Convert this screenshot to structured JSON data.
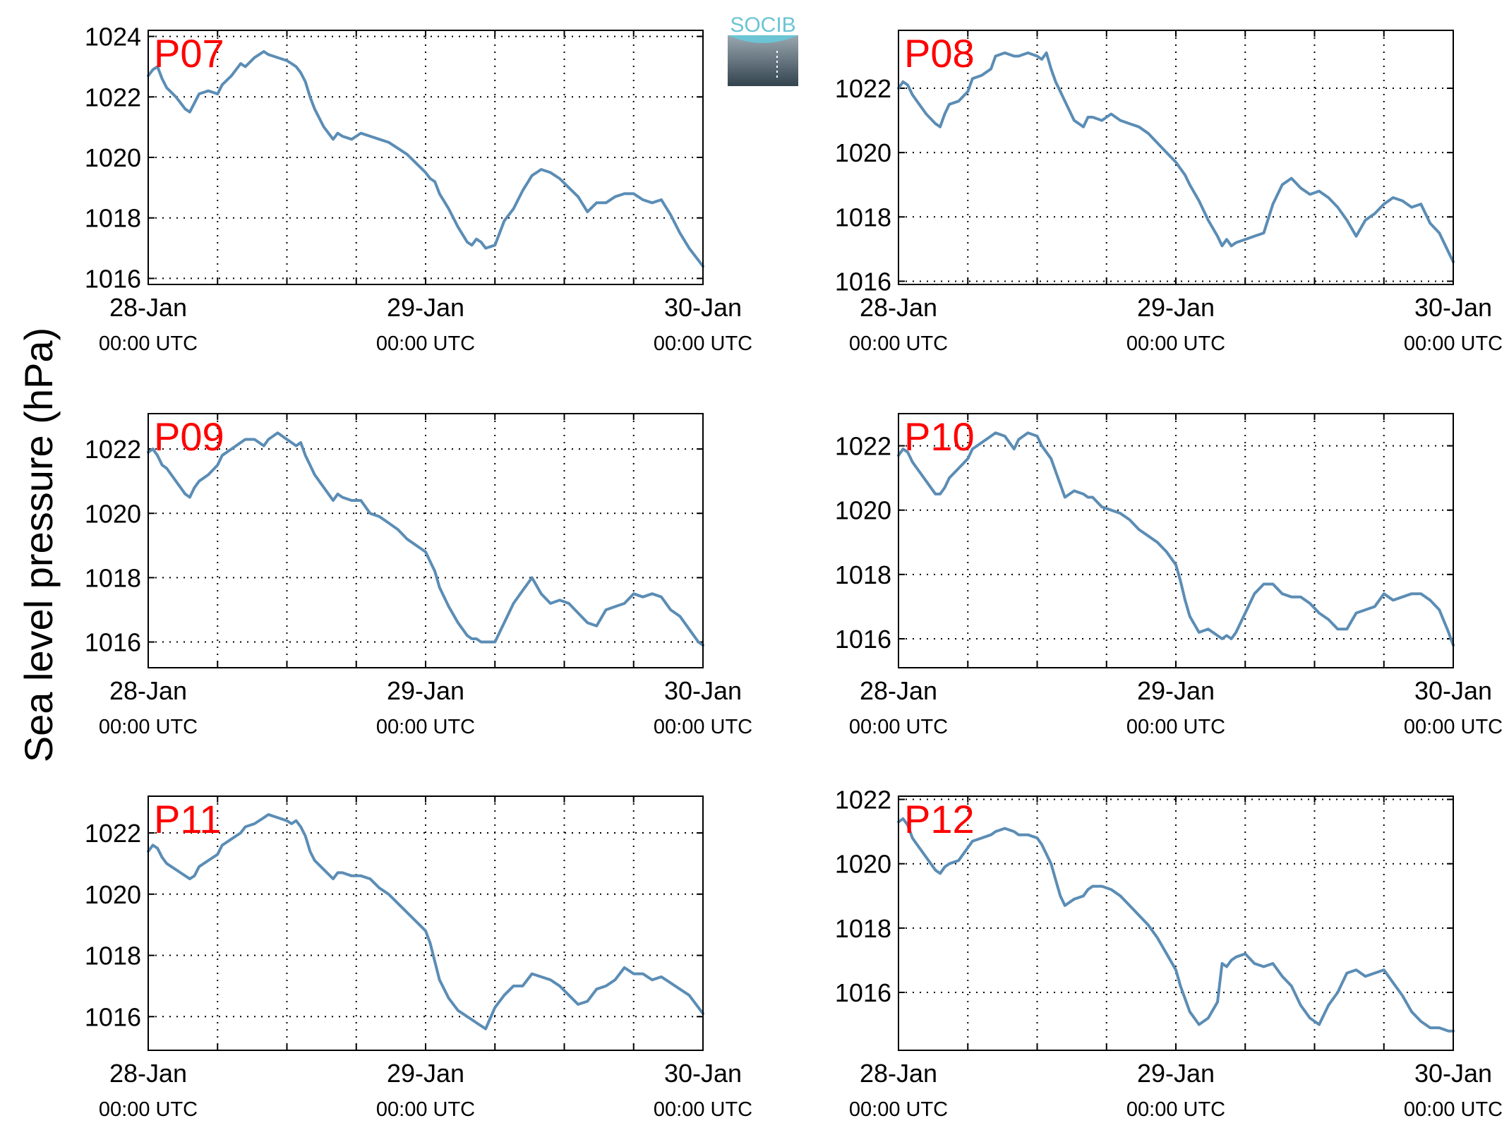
{
  "figure": {
    "ylabel": "Sea level pressure (hPa)",
    "logo_text": "SOCIB",
    "line_color": "#5b8db5",
    "label_color": "#ff0000"
  },
  "chart_data": [
    {
      "type": "line",
      "panel_label": "P07",
      "x_ticks": [
        {
          "day": "28-Jan",
          "time": "00:00 UTC"
        },
        {
          "day": "29-Jan",
          "time": "00:00 UTC"
        },
        {
          "day": "30-Jan",
          "time": "00:00 UTC"
        }
      ],
      "xlim_hours": [
        0,
        48
      ],
      "ylim": [
        1015.8,
        1024.2
      ],
      "y_ticks": [
        1016,
        1018,
        1020,
        1022,
        1024
      ],
      "grid": true,
      "x_hours": [
        0,
        0.4,
        0.8,
        1.2,
        1.6,
        2.4,
        3.2,
        3.6,
        4.0,
        4.4,
        5.2,
        6.0,
        6.4,
        7.2,
        8.0,
        8.4,
        9.2,
        10.0,
        10.4,
        11.2,
        12.0,
        12.4,
        12.8,
        13.2,
        13.6,
        14.0,
        14.4,
        15.2,
        16.0,
        16.4,
        16.8,
        17.6,
        18.4,
        19.2,
        20.0,
        20.8,
        21.6,
        22.4,
        23.2,
        24.0,
        24.4,
        24.8,
        25.2,
        26.0,
        26.8,
        27.6,
        28.0,
        28.4,
        28.8,
        29.2,
        30.0,
        30.8,
        31.6,
        32.4,
        33.2,
        34.0,
        34.8,
        35.6,
        36.4,
        37.2,
        38.0,
        38.8,
        39.6,
        40.4,
        41.2,
        42.0,
        42.8,
        43.6,
        44.4,
        45.2,
        46.0,
        46.8,
        47.6,
        48.0
      ],
      "y_values": [
        1022.7,
        1022.9,
        1023.0,
        1022.6,
        1022.3,
        1022.0,
        1021.6,
        1021.5,
        1021.8,
        1022.1,
        1022.2,
        1022.1,
        1022.4,
        1022.7,
        1023.1,
        1023.0,
        1023.3,
        1023.5,
        1023.4,
        1023.3,
        1023.2,
        1023.1,
        1023.0,
        1022.8,
        1022.5,
        1022.0,
        1021.6,
        1021.0,
        1020.6,
        1020.8,
        1020.7,
        1020.6,
        1020.8,
        1020.7,
        1020.6,
        1020.5,
        1020.3,
        1020.1,
        1019.8,
        1019.5,
        1019.3,
        1019.2,
        1018.8,
        1018.3,
        1017.7,
        1017.2,
        1017.1,
        1017.3,
        1017.2,
        1017.0,
        1017.1,
        1017.9,
        1018.3,
        1018.9,
        1019.4,
        1019.6,
        1019.5,
        1019.3,
        1019.0,
        1018.7,
        1018.2,
        1018.5,
        1018.5,
        1018.7,
        1018.8,
        1018.8,
        1018.6,
        1018.5,
        1018.6,
        1018.1,
        1017.5,
        1017.0,
        1016.6,
        1016.4
      ]
    },
    {
      "type": "line",
      "panel_label": "P08",
      "x_ticks": [
        {
          "day": "28-Jan",
          "time": "00:00 UTC"
        },
        {
          "day": "29-Jan",
          "time": "00:00 UTC"
        },
        {
          "day": "30-Jan",
          "time": "00:00 UTC"
        }
      ],
      "xlim_hours": [
        0,
        48
      ],
      "ylim": [
        1015.9,
        1023.8
      ],
      "y_ticks": [
        1016,
        1018,
        1020,
        1022
      ],
      "grid": true,
      "x_hours": [
        0,
        0.4,
        0.8,
        1.2,
        1.6,
        2.4,
        3.2,
        3.6,
        4.0,
        4.4,
        5.2,
        6.0,
        6.4,
        7.2,
        8.0,
        8.4,
        9.2,
        10.0,
        10.4,
        11.2,
        12.0,
        12.4,
        12.8,
        13.2,
        13.6,
        14.0,
        14.4,
        15.2,
        16.0,
        16.4,
        16.8,
        17.6,
        18.4,
        19.2,
        20.0,
        20.8,
        21.6,
        22.4,
        23.2,
        24.0,
        24.4,
        24.8,
        25.2,
        26.0,
        26.8,
        27.6,
        28.0,
        28.4,
        28.8,
        29.2,
        30.0,
        30.8,
        31.6,
        32.4,
        33.2,
        34.0,
        34.8,
        35.6,
        36.4,
        37.2,
        38.0,
        38.8,
        39.6,
        40.4,
        41.2,
        42.0,
        42.8,
        43.6,
        44.4,
        45.2,
        46.0,
        46.8,
        47.6,
        48.0
      ],
      "y_values": [
        1022.0,
        1022.2,
        1022.1,
        1021.8,
        1021.6,
        1021.2,
        1020.9,
        1020.8,
        1021.2,
        1021.5,
        1021.6,
        1021.9,
        1022.3,
        1022.4,
        1022.6,
        1023.0,
        1023.1,
        1023.0,
        1023.0,
        1023.1,
        1023.0,
        1022.9,
        1023.1,
        1022.6,
        1022.2,
        1021.9,
        1021.6,
        1021.0,
        1020.8,
        1021.1,
        1021.1,
        1021.0,
        1021.2,
        1021.0,
        1020.9,
        1020.8,
        1020.6,
        1020.3,
        1020.0,
        1019.7,
        1019.5,
        1019.3,
        1019.0,
        1018.5,
        1017.9,
        1017.4,
        1017.1,
        1017.3,
        1017.1,
        1017.2,
        1017.3,
        1017.4,
        1017.5,
        1018.4,
        1019.0,
        1019.2,
        1018.9,
        1018.7,
        1018.8,
        1018.6,
        1018.3,
        1017.9,
        1017.4,
        1017.9,
        1018.1,
        1018.4,
        1018.6,
        1018.5,
        1018.3,
        1018.4,
        1017.8,
        1017.5,
        1016.9,
        1016.6
      ]
    },
    {
      "type": "line",
      "panel_label": "P09",
      "x_ticks": [
        {
          "day": "28-Jan",
          "time": "00:00 UTC"
        },
        {
          "day": "29-Jan",
          "time": "00:00 UTC"
        },
        {
          "day": "30-Jan",
          "time": "00:00 UTC"
        }
      ],
      "xlim_hours": [
        0,
        48
      ],
      "ylim": [
        1015.2,
        1023.1
      ],
      "y_ticks": [
        1016,
        1018,
        1020,
        1022
      ],
      "grid": true,
      "x_hours": [
        0,
        0.4,
        0.8,
        1.2,
        1.6,
        2.4,
        3.2,
        3.6,
        4.0,
        4.4,
        5.2,
        6.0,
        6.4,
        7.2,
        8.0,
        8.4,
        9.2,
        10.0,
        10.4,
        11.2,
        12.0,
        12.4,
        12.8,
        13.2,
        13.6,
        14.0,
        14.4,
        15.2,
        16.0,
        16.4,
        16.8,
        17.6,
        18.4,
        19.2,
        20.0,
        20.8,
        21.6,
        22.4,
        23.2,
        24.0,
        24.4,
        24.8,
        25.2,
        26.0,
        26.8,
        27.6,
        28.0,
        28.4,
        28.8,
        29.2,
        30.0,
        30.8,
        31.6,
        32.4,
        33.2,
        34.0,
        34.8,
        35.6,
        36.4,
        37.2,
        38.0,
        38.8,
        39.6,
        40.4,
        41.2,
        42.0,
        42.8,
        43.6,
        44.4,
        45.2,
        46.0,
        46.8,
        47.6,
        48.0
      ],
      "y_values": [
        1021.9,
        1022.0,
        1021.8,
        1021.5,
        1021.4,
        1021.0,
        1020.6,
        1020.5,
        1020.8,
        1021.0,
        1021.2,
        1021.5,
        1021.8,
        1022.0,
        1022.2,
        1022.3,
        1022.3,
        1022.1,
        1022.3,
        1022.5,
        1022.3,
        1022.2,
        1022.1,
        1022.2,
        1021.8,
        1021.5,
        1021.2,
        1020.8,
        1020.4,
        1020.6,
        1020.5,
        1020.4,
        1020.4,
        1020.0,
        1019.9,
        1019.7,
        1019.5,
        1019.2,
        1019.0,
        1018.8,
        1018.5,
        1018.2,
        1017.7,
        1017.1,
        1016.6,
        1016.2,
        1016.1,
        1016.1,
        1016.0,
        1016.0,
        1016.0,
        1016.6,
        1017.2,
        1017.6,
        1018.0,
        1017.5,
        1017.2,
        1017.3,
        1017.2,
        1016.9,
        1016.6,
        1016.5,
        1017.0,
        1017.1,
        1017.2,
        1017.5,
        1017.4,
        1017.5,
        1017.4,
        1017.0,
        1016.8,
        1016.4,
        1016.0,
        1015.9
      ]
    },
    {
      "type": "line",
      "panel_label": "P10",
      "x_ticks": [
        {
          "day": "28-Jan",
          "time": "00:00 UTC"
        },
        {
          "day": "29-Jan",
          "time": "00:00 UTC"
        },
        {
          "day": "30-Jan",
          "time": "00:00 UTC"
        }
      ],
      "xlim_hours": [
        0,
        48
      ],
      "ylim": [
        1015.1,
        1023.0
      ],
      "y_ticks": [
        1016,
        1018,
        1020,
        1022
      ],
      "grid": true,
      "x_hours": [
        0,
        0.4,
        0.8,
        1.2,
        1.6,
        2.4,
        3.2,
        3.6,
        4.0,
        4.4,
        5.2,
        6.0,
        6.4,
        7.2,
        8.0,
        8.4,
        9.2,
        10.0,
        10.4,
        11.2,
        12.0,
        12.4,
        12.8,
        13.2,
        13.6,
        14.0,
        14.4,
        15.2,
        16.0,
        16.4,
        16.8,
        17.6,
        18.4,
        19.2,
        20.0,
        20.8,
        21.6,
        22.4,
        23.2,
        24.0,
        24.4,
        24.8,
        25.2,
        26.0,
        26.8,
        27.6,
        28.0,
        28.4,
        28.8,
        29.2,
        30.0,
        30.8,
        31.6,
        32.4,
        33.2,
        34.0,
        34.8,
        35.6,
        36.4,
        37.2,
        38.0,
        38.8,
        39.6,
        40.4,
        41.2,
        42.0,
        42.8,
        43.6,
        44.4,
        45.2,
        46.0,
        46.8,
        47.6,
        48.0
      ],
      "y_values": [
        1021.7,
        1021.9,
        1021.8,
        1021.5,
        1021.3,
        1020.9,
        1020.5,
        1020.5,
        1020.7,
        1021.0,
        1021.3,
        1021.6,
        1021.9,
        1022.1,
        1022.3,
        1022.4,
        1022.3,
        1021.9,
        1022.2,
        1022.4,
        1022.3,
        1022.0,
        1021.8,
        1021.6,
        1021.2,
        1020.8,
        1020.4,
        1020.6,
        1020.5,
        1020.4,
        1020.4,
        1020.1,
        1020.0,
        1019.9,
        1019.7,
        1019.4,
        1019.2,
        1019.0,
        1018.7,
        1018.3,
        1017.8,
        1017.2,
        1016.7,
        1016.2,
        1016.3,
        1016.1,
        1016.0,
        1016.1,
        1016.0,
        1016.2,
        1016.8,
        1017.4,
        1017.7,
        1017.7,
        1017.4,
        1017.3,
        1017.3,
        1017.1,
        1016.8,
        1016.6,
        1016.3,
        1016.3,
        1016.8,
        1016.9,
        1017.0,
        1017.4,
        1017.2,
        1017.3,
        1017.4,
        1017.4,
        1017.2,
        1016.9,
        1016.2,
        1015.8
      ]
    },
    {
      "type": "line",
      "panel_label": "P11",
      "x_ticks": [
        {
          "day": "28-Jan",
          "time": "00:00 UTC"
        },
        {
          "day": "29-Jan",
          "time": "00:00 UTC"
        },
        {
          "day": "30-Jan",
          "time": "00:00 UTC"
        }
      ],
      "xlim_hours": [
        0,
        48
      ],
      "ylim": [
        1014.9,
        1023.2
      ],
      "y_ticks": [
        1016,
        1018,
        1020,
        1022
      ],
      "grid": true,
      "x_hours": [
        0,
        0.4,
        0.8,
        1.2,
        1.6,
        2.4,
        3.2,
        3.6,
        4.0,
        4.4,
        5.2,
        6.0,
        6.4,
        7.2,
        8.0,
        8.4,
        9.2,
        10.0,
        10.4,
        11.2,
        12.0,
        12.4,
        12.8,
        13.2,
        13.6,
        14.0,
        14.4,
        15.2,
        16.0,
        16.4,
        16.8,
        17.6,
        18.4,
        19.2,
        20.0,
        20.8,
        21.6,
        22.4,
        23.2,
        24.0,
        24.4,
        24.8,
        25.2,
        26.0,
        26.8,
        27.6,
        28.0,
        28.4,
        28.8,
        29.2,
        30.0,
        30.8,
        31.6,
        32.4,
        33.2,
        34.0,
        34.8,
        35.6,
        36.4,
        37.2,
        38.0,
        38.8,
        39.6,
        40.4,
        41.2,
        42.0,
        42.8,
        43.6,
        44.4,
        45.2,
        46.0,
        46.8,
        47.6,
        48.0
      ],
      "y_values": [
        1021.4,
        1021.6,
        1021.5,
        1021.2,
        1021.0,
        1020.8,
        1020.6,
        1020.5,
        1020.6,
        1020.9,
        1021.1,
        1021.3,
        1021.6,
        1021.8,
        1022.0,
        1022.2,
        1022.3,
        1022.5,
        1022.6,
        1022.5,
        1022.4,
        1022.3,
        1022.4,
        1022.2,
        1021.9,
        1021.4,
        1021.1,
        1020.8,
        1020.5,
        1020.7,
        1020.7,
        1020.6,
        1020.6,
        1020.5,
        1020.2,
        1020.0,
        1019.7,
        1019.4,
        1019.1,
        1018.8,
        1018.4,
        1017.8,
        1017.2,
        1016.6,
        1016.2,
        1016.0,
        1015.9,
        1015.8,
        1015.7,
        1015.6,
        1016.3,
        1016.7,
        1017.0,
        1017.0,
        1017.4,
        1017.3,
        1017.2,
        1017.0,
        1016.7,
        1016.4,
        1016.5,
        1016.9,
        1017.0,
        1017.2,
        1017.6,
        1017.4,
        1017.4,
        1017.2,
        1017.3,
        1017.1,
        1016.9,
        1016.7,
        1016.3,
        1016.1
      ]
    },
    {
      "type": "line",
      "panel_label": "P12",
      "x_ticks": [
        {
          "day": "28-Jan",
          "time": "00:00 UTC"
        },
        {
          "day": "29-Jan",
          "time": "00:00 UTC"
        },
        {
          "day": "30-Jan",
          "time": "00:00 UTC"
        }
      ],
      "xlim_hours": [
        0,
        48
      ],
      "ylim": [
        1014.2,
        1022.1
      ],
      "y_ticks": [
        1016,
        1018,
        1020,
        1022
      ],
      "grid": true,
      "x_hours": [
        0,
        0.4,
        0.8,
        1.2,
        1.6,
        2.4,
        3.2,
        3.6,
        4.0,
        4.4,
        5.2,
        6.0,
        6.4,
        7.2,
        8.0,
        8.4,
        9.2,
        10.0,
        10.4,
        11.2,
        12.0,
        12.4,
        12.8,
        13.2,
        13.6,
        14.0,
        14.4,
        15.2,
        16.0,
        16.4,
        16.8,
        17.6,
        18.4,
        19.2,
        20.0,
        20.8,
        21.6,
        22.4,
        23.2,
        24.0,
        24.4,
        24.8,
        25.2,
        26.0,
        26.8,
        27.6,
        28.0,
        28.4,
        28.8,
        29.2,
        30.0,
        30.8,
        31.6,
        32.4,
        33.2,
        34.0,
        34.8,
        35.6,
        36.4,
        37.2,
        38.0,
        38.8,
        39.6,
        40.4,
        41.2,
        42.0,
        42.8,
        43.6,
        44.4,
        45.2,
        46.0,
        46.8,
        47.6,
        48.0
      ],
      "y_values": [
        1021.3,
        1021.4,
        1021.2,
        1020.8,
        1020.6,
        1020.2,
        1019.8,
        1019.7,
        1019.9,
        1020.0,
        1020.1,
        1020.5,
        1020.7,
        1020.8,
        1020.9,
        1021.0,
        1021.1,
        1021.0,
        1020.9,
        1020.9,
        1020.8,
        1020.6,
        1020.3,
        1020.0,
        1019.5,
        1019.0,
        1018.7,
        1018.9,
        1019.0,
        1019.2,
        1019.3,
        1019.3,
        1019.2,
        1019.0,
        1018.7,
        1018.4,
        1018.1,
        1017.7,
        1017.2,
        1016.7,
        1016.2,
        1015.8,
        1015.4,
        1015.0,
        1015.2,
        1015.7,
        1016.9,
        1016.8,
        1017.0,
        1017.1,
        1017.2,
        1016.9,
        1016.8,
        1016.9,
        1016.5,
        1016.2,
        1015.6,
        1015.2,
        1015.0,
        1015.6,
        1016.0,
        1016.6,
        1016.7,
        1016.5,
        1016.6,
        1016.7,
        1016.3,
        1015.9,
        1015.4,
        1015.1,
        1014.9,
        1014.9,
        1014.8,
        1014.8
      ]
    }
  ]
}
